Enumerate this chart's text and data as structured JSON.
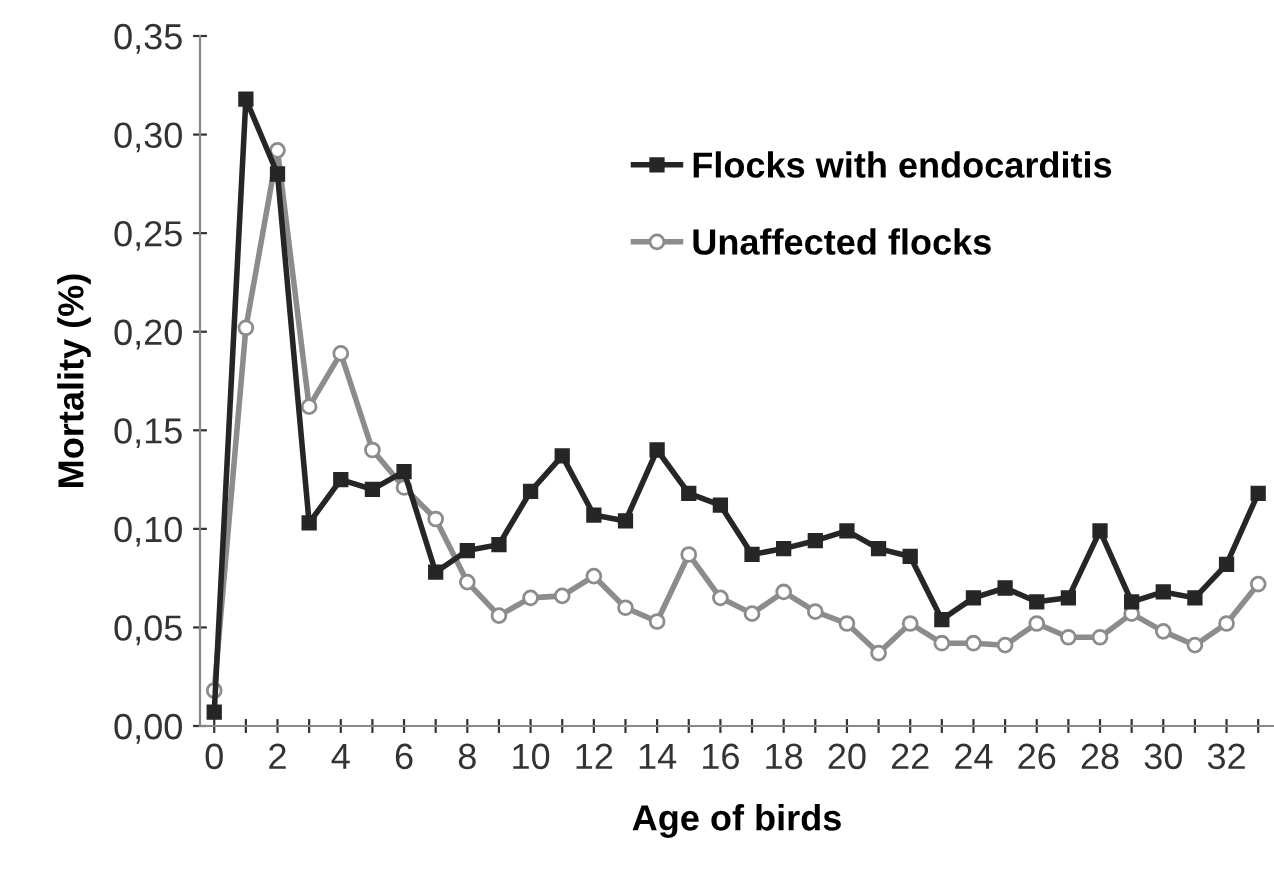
{
  "chart_data": {
    "type": "line",
    "xlabel": "Age of birds",
    "ylabel": "Mortality (%)",
    "x": [
      0,
      1,
      2,
      3,
      4,
      5,
      6,
      7,
      8,
      9,
      10,
      11,
      12,
      13,
      14,
      15,
      16,
      17,
      18,
      19,
      20,
      21,
      22,
      23,
      24,
      25,
      26,
      27,
      28,
      29,
      30,
      31,
      32,
      33
    ],
    "series": [
      {
        "name": "Flocks with endocarditis",
        "color": "#262626",
        "marker": "square",
        "values": [
          0.007,
          0.318,
          0.28,
          0.103,
          0.125,
          0.12,
          0.129,
          0.078,
          0.089,
          0.092,
          0.119,
          0.137,
          0.107,
          0.104,
          0.14,
          0.118,
          0.112,
          0.087,
          0.09,
          0.094,
          0.099,
          0.09,
          0.086,
          0.054,
          0.065,
          0.07,
          0.063,
          0.065,
          0.099,
          0.063,
          0.068,
          0.065,
          0.082,
          0.118
        ]
      },
      {
        "name": "Unaffected flocks",
        "color": "#8c8c8c",
        "marker": "circle",
        "values": [
          0.018,
          0.202,
          0.292,
          0.162,
          0.189,
          0.14,
          0.121,
          0.105,
          0.073,
          0.056,
          0.065,
          0.066,
          0.076,
          0.06,
          0.053,
          0.087,
          0.065,
          0.057,
          0.068,
          0.058,
          0.052,
          0.037,
          0.052,
          0.042,
          0.042,
          0.041,
          0.052,
          0.045,
          0.045,
          0.057,
          0.048,
          0.041,
          0.052,
          0.072
        ]
      }
    ],
    "xlim": [
      -0.45,
      33.5
    ],
    "xticks": [
      0,
      {
        "value": 1,
        "label": null
      },
      2,
      {
        "value": 3,
        "label": null
      },
      4,
      {
        "value": 5,
        "label": null
      },
      6,
      {
        "value": 7,
        "label": null
      },
      8,
      {
        "value": 9,
        "label": null
      },
      10,
      {
        "value": 11,
        "label": null
      },
      12,
      {
        "value": 13,
        "label": null
      },
      14,
      {
        "value": 15,
        "label": null
      },
      16,
      {
        "value": 17,
        "label": null
      },
      18,
      {
        "value": 19,
        "label": null
      },
      20,
      {
        "value": 21,
        "label": null
      },
      22,
      {
        "value": 23,
        "label": null
      },
      24,
      {
        "value": 25,
        "label": null
      },
      26,
      {
        "value": 27,
        "label": null
      },
      28,
      {
        "value": 29,
        "label": null
      },
      30,
      {
        "value": 31,
        "label": null
      },
      32,
      {
        "value": 33,
        "label": null
      }
    ],
    "ylim": [
      0,
      0.35
    ],
    "yticks": [
      {
        "value": 0,
        "label": "0,00"
      },
      {
        "value": 0.05,
        "label": "0,05"
      },
      {
        "value": 0.1,
        "label": "0,10"
      },
      {
        "value": 0.15,
        "label": "0,15"
      },
      {
        "value": 0.2,
        "label": "0,20"
      },
      {
        "value": 0.25,
        "label": "0,25"
      },
      {
        "value": 0.3,
        "label": "0,30"
      },
      {
        "value": 0.35,
        "label": "0,35"
      }
    ],
    "grid": false,
    "legend": "top right",
    "line_style": "solid"
  }
}
